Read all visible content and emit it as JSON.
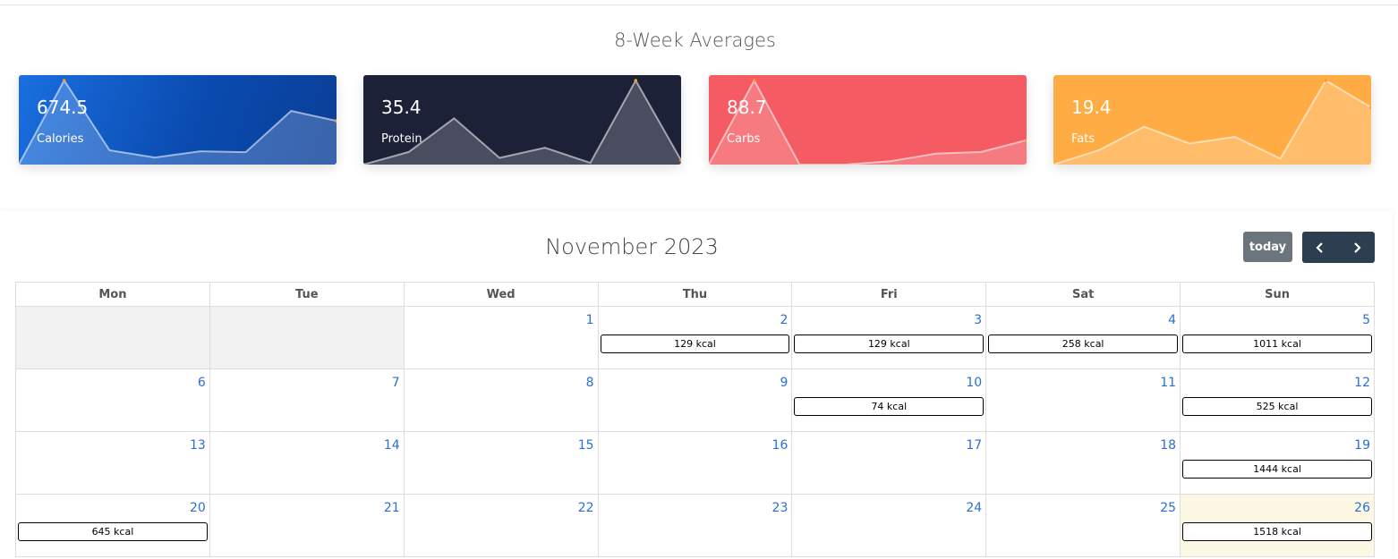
{
  "averages": {
    "title": "8-Week Averages",
    "cards": [
      {
        "label": "Calories",
        "value": "674.5",
        "color": "#0b4fb5",
        "trend": [
          0,
          1011,
          172,
          85,
          160,
          149,
          645,
          525
        ]
      },
      {
        "label": "Protein",
        "value": "35.4",
        "color": "#1c2138",
        "trend": [
          0,
          15,
          55,
          8,
          20,
          2,
          100,
          5
        ]
      },
      {
        "label": "Carbs",
        "value": "88.7",
        "color": "#f45b62",
        "trend": [
          0,
          100,
          0,
          0,
          4,
          13,
          15,
          29
        ]
      },
      {
        "label": "Fats",
        "value": "19.4",
        "color": "#ffac45",
        "trend": [
          0,
          17,
          45,
          25,
          33,
          7,
          100,
          68
        ]
      }
    ]
  },
  "calendar": {
    "title": "November 2023",
    "today_label": "today",
    "prev_icon": "chevron-left-icon",
    "next_icon": "chevron-right-icon",
    "weekdays": [
      "Mon",
      "Tue",
      "Wed",
      "Thu",
      "Fri",
      "Sat",
      "Sun"
    ],
    "weeks": [
      [
        {
          "day": "",
          "other": true,
          "event": ""
        },
        {
          "day": "",
          "other": true,
          "event": ""
        },
        {
          "day": "1",
          "event": ""
        },
        {
          "day": "2",
          "event": "129 kcal"
        },
        {
          "day": "3",
          "event": "129 kcal"
        },
        {
          "day": "4",
          "event": "258 kcal"
        },
        {
          "day": "5",
          "event": "1011 kcal"
        }
      ],
      [
        {
          "day": "6",
          "event": ""
        },
        {
          "day": "7",
          "event": ""
        },
        {
          "day": "8",
          "event": ""
        },
        {
          "day": "9",
          "event": ""
        },
        {
          "day": "10",
          "event": "74 kcal"
        },
        {
          "day": "11",
          "event": ""
        },
        {
          "day": "12",
          "event": "525 kcal"
        }
      ],
      [
        {
          "day": "13",
          "event": ""
        },
        {
          "day": "14",
          "event": ""
        },
        {
          "day": "15",
          "event": ""
        },
        {
          "day": "16",
          "event": ""
        },
        {
          "day": "17",
          "event": ""
        },
        {
          "day": "18",
          "event": ""
        },
        {
          "day": "19",
          "event": "1444 kcal"
        }
      ],
      [
        {
          "day": "20",
          "event": "645 kcal"
        },
        {
          "day": "21",
          "event": ""
        },
        {
          "day": "22",
          "event": ""
        },
        {
          "day": "23",
          "event": ""
        },
        {
          "day": "24",
          "event": ""
        },
        {
          "day": "25",
          "event": ""
        },
        {
          "day": "26",
          "event": "1518 kcal",
          "today": true
        }
      ]
    ]
  }
}
